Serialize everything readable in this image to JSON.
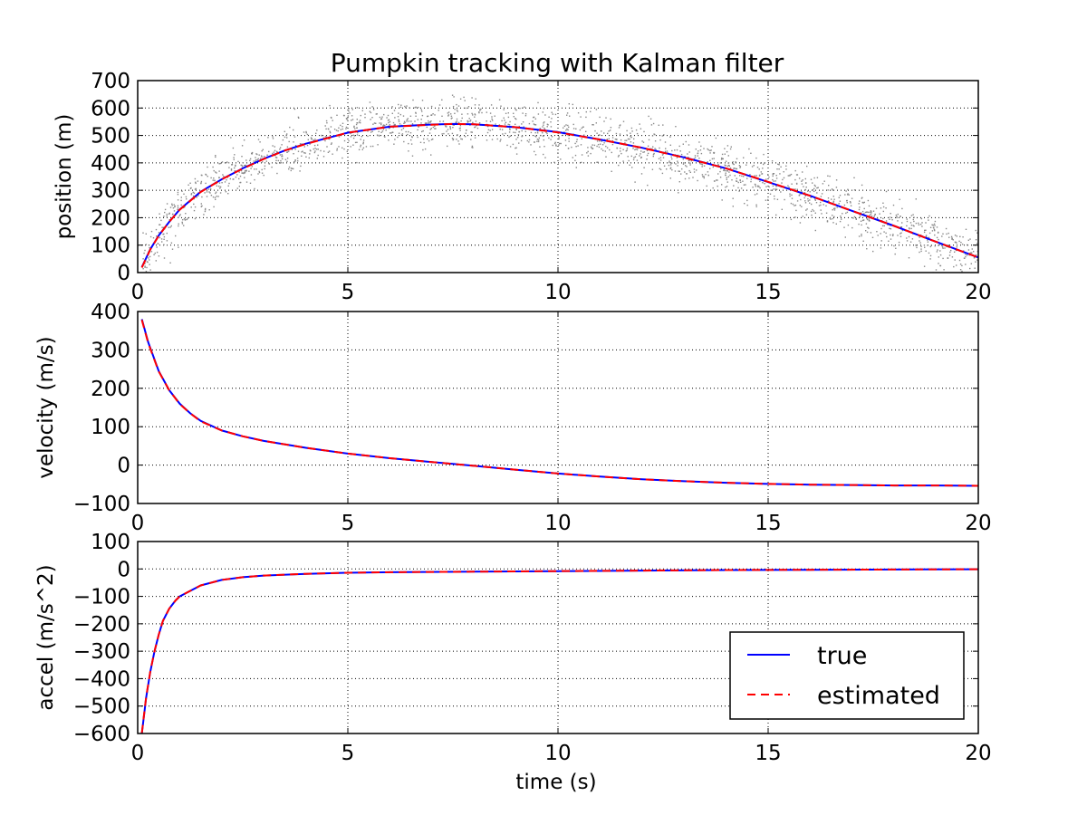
{
  "chart_data": {
    "type": "line",
    "title": "Pumpkin tracking with Kalman filter",
    "legend": {
      "placement": "lower-right",
      "entries": [
        {
          "label": "true",
          "color": "#0000ff",
          "style": "solid"
        },
        {
          "label": "estimated",
          "color": "#ff0000",
          "style": "dashed"
        }
      ]
    },
    "shared_x": {
      "label": "time (s)",
      "range": [
        0,
        20
      ],
      "ticks": [
        "0",
        "5",
        "10",
        "15",
        "20"
      ]
    },
    "grid": true,
    "panels": [
      {
        "ylabel": "position (m)",
        "ylim": [
          0,
          700
        ],
        "yticks": [
          "0",
          "100",
          "200",
          "300",
          "400",
          "500",
          "600",
          "700"
        ],
        "show_xlabel": false,
        "measurements": {
          "color": "#888888",
          "noise_std": 45
        },
        "series": [
          {
            "name": "true",
            "color": "#0000ff",
            "x": [
              0.1,
              0.3,
              0.5,
              0.75,
              1,
              1.5,
              2,
              2.5,
              3,
              3.5,
              4,
              5,
              6,
              7,
              7.5,
              8,
              9,
              10,
              11,
              12,
              13,
              14,
              15,
              16,
              17,
              18,
              19,
              20
            ],
            "y": [
              20,
              85,
              135,
              185,
              230,
              295,
              340,
              380,
              415,
              445,
              470,
              510,
              532,
              540,
              542,
              541,
              530,
              512,
              485,
              455,
              420,
              380,
              330,
              280,
              225,
              170,
              112,
              55
            ]
          },
          {
            "name": "estimated",
            "color": "#ff0000",
            "x": [
              0.1,
              0.3,
              0.5,
              0.75,
              1,
              1.5,
              2,
              2.5,
              3,
              3.5,
              4,
              5,
              6,
              7,
              7.5,
              8,
              9,
              10,
              11,
              12,
              13,
              14,
              15,
              16,
              17,
              18,
              19,
              20
            ],
            "y": [
              18,
              84,
              134,
              185,
              229,
              294,
              340,
              379,
              414,
              445,
              469,
              510,
              532,
              539,
              542,
              541,
              530,
              511,
              485,
              455,
              419,
              380,
              331,
              280,
              225,
              170,
              112,
              55
            ]
          }
        ]
      },
      {
        "ylabel": "velocity (m/s)",
        "ylim": [
          -100,
          400
        ],
        "yticks": [
          "−100",
          "0",
          "100",
          "200",
          "300",
          "400"
        ],
        "show_xlabel": false,
        "series": [
          {
            "name": "true",
            "color": "#0000ff",
            "x": [
              0.1,
              0.25,
              0.5,
              0.75,
              1,
              1.25,
              1.5,
              2,
              2.5,
              3,
              4,
              5,
              6,
              7,
              7.5,
              8,
              9,
              10,
              11,
              12,
              13,
              14,
              15,
              16,
              17,
              18,
              19,
              20
            ],
            "y": [
              380,
              320,
              245,
              195,
              160,
              135,
              115,
              90,
              75,
              63,
              45,
              30,
              18,
              8,
              3,
              -2,
              -12,
              -22,
              -30,
              -37,
              -42,
              -46,
              -49,
              -51,
              -52,
              -53,
              -53,
              -54
            ]
          },
          {
            "name": "estimated",
            "color": "#ff0000",
            "x": [
              0.1,
              0.25,
              0.5,
              0.75,
              1,
              1.25,
              1.5,
              2,
              2.5,
              3,
              4,
              5,
              6,
              7,
              7.5,
              8,
              9,
              10,
              11,
              12,
              13,
              14,
              15,
              16,
              17,
              18,
              19,
              20
            ],
            "y": [
              378,
              318,
              244,
              195,
              159,
              135,
              114,
              90,
              75,
              63,
              45,
              30,
              18,
              8,
              3,
              -2,
              -12,
              -22,
              -30,
              -37,
              -42,
              -46,
              -49,
              -51,
              -52,
              -53,
              -53,
              -54
            ]
          }
        ]
      },
      {
        "ylabel": "accel (m/s^2)",
        "ylim": [
          -600,
          100
        ],
        "yticks": [
          "−600",
          "−500",
          "−400",
          "−300",
          "−200",
          "−100",
          "0",
          "100"
        ],
        "show_xlabel": true,
        "series": [
          {
            "name": "true",
            "color": "#0000ff",
            "x": [
              0.1,
              0.2,
              0.3,
              0.4,
              0.5,
              0.6,
              0.75,
              0.9,
              1,
              1.25,
              1.5,
              2,
              2.5,
              3,
              4,
              5,
              6,
              8,
              10,
              12,
              14,
              16,
              18,
              20
            ],
            "y": [
              -600,
              -470,
              -375,
              -300,
              -240,
              -190,
              -145,
              -115,
              -100,
              -80,
              -60,
              -40,
              -30,
              -24,
              -18,
              -14,
              -12,
              -10,
              -8,
              -6,
              -4,
              -3,
              -2,
              -1
            ]
          },
          {
            "name": "estimated",
            "color": "#ff0000",
            "x": [
              0.1,
              0.2,
              0.3,
              0.4,
              0.5,
              0.6,
              0.75,
              0.9,
              1,
              1.25,
              1.5,
              2,
              2.5,
              3,
              4,
              5,
              6,
              8,
              10,
              12,
              14,
              16,
              18,
              20
            ],
            "y": [
              -598,
              -468,
              -374,
              -300,
              -240,
              -190,
              -145,
              -115,
              -100,
              -80,
              -60,
              -40,
              -30,
              -24,
              -18,
              -14,
              -12,
              -10,
              -8,
              -6,
              -4,
              -3,
              -2,
              -1
            ]
          }
        ]
      }
    ]
  }
}
